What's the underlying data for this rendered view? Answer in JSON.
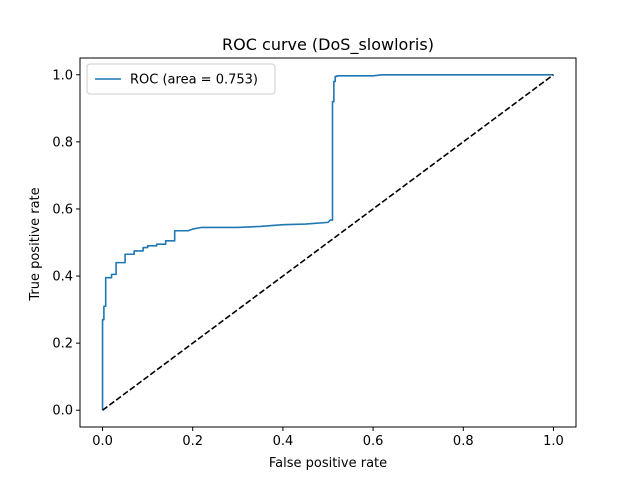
{
  "chart_data": {
    "type": "line",
    "title": "ROC curve (DoS_slowloris)",
    "xlabel": "False positive rate",
    "ylabel": "True positive rate",
    "xlim": [
      -0.05,
      1.05
    ],
    "ylim": [
      -0.05,
      1.05
    ],
    "x_ticks": [
      "0.0",
      "0.2",
      "0.4",
      "0.6",
      "0.8",
      "1.0"
    ],
    "y_ticks": [
      "0.0",
      "0.2",
      "0.4",
      "0.6",
      "0.8",
      "1.0"
    ],
    "grid": false,
    "legend_position": "upper-left",
    "series": [
      {
        "name": "ROC (area = 0.753)",
        "color": "#1f77b4",
        "style": "solid",
        "x": [
          0.0,
          0.0,
          0.003,
          0.003,
          0.007,
          0.007,
          0.02,
          0.02,
          0.03,
          0.03,
          0.05,
          0.05,
          0.07,
          0.07,
          0.09,
          0.09,
          0.1,
          0.1,
          0.12,
          0.12,
          0.14,
          0.14,
          0.16,
          0.16,
          0.19,
          0.2,
          0.22,
          0.3,
          0.35,
          0.4,
          0.45,
          0.5,
          0.505,
          0.51,
          0.51,
          0.513,
          0.513,
          0.516,
          0.516,
          0.52,
          0.52,
          0.6,
          0.62,
          1.0
        ],
        "y": [
          0.0,
          0.27,
          0.27,
          0.31,
          0.31,
          0.395,
          0.395,
          0.405,
          0.405,
          0.44,
          0.44,
          0.465,
          0.465,
          0.475,
          0.475,
          0.485,
          0.485,
          0.49,
          0.49,
          0.495,
          0.495,
          0.505,
          0.505,
          0.535,
          0.535,
          0.54,
          0.545,
          0.545,
          0.548,
          0.553,
          0.555,
          0.56,
          0.567,
          0.567,
          0.92,
          0.92,
          0.98,
          0.98,
          0.995,
          0.995,
          0.997,
          0.997,
          1.0,
          1.0
        ]
      },
      {
        "name": "",
        "color": "#000000",
        "style": "dashed",
        "x": [
          0.0,
          1.0
        ],
        "y": [
          0.0,
          1.0
        ]
      }
    ]
  }
}
